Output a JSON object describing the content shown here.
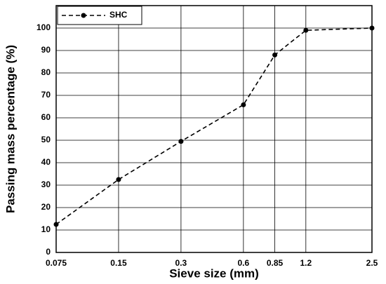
{
  "chart_data": {
    "type": "line",
    "x_label": "Sieve size (mm)",
    "y_label": "Passing mass percentage (%)",
    "x": [
      0.075,
      0.15,
      0.3,
      0.6,
      0.85,
      1.2,
      2.5
    ],
    "series": [
      {
        "name": "SHC",
        "color": "#000000",
        "values": [
          12.5,
          32.5,
          49.5,
          65.8,
          88,
          99,
          100
        ]
      }
    ],
    "xscale": "log",
    "xlim": [
      0.075,
      2.5
    ],
    "xticks": [
      0.075,
      0.15,
      0.3,
      0.6,
      0.85,
      1.2,
      2.5
    ],
    "ylim": [
      0,
      110
    ],
    "yticks": [
      0,
      10,
      20,
      30,
      40,
      50,
      60,
      70,
      80,
      90,
      100
    ],
    "grid": true,
    "legend": "upper left"
  }
}
